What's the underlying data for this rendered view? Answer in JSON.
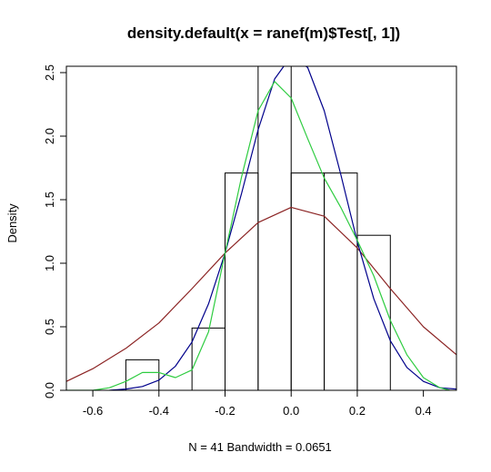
{
  "chart_data": {
    "type": "line",
    "title": "density.default(x = ranef(m)$Test[, 1])",
    "xlabel": "N = 41   Bandwidth = 0.0651",
    "ylabel": "Density",
    "xlim": [
      -0.68,
      0.5
    ],
    "ylim": [
      0,
      2.55
    ],
    "x_ticks": [
      -0.6,
      -0.4,
      -0.2,
      0.0,
      0.2,
      0.4
    ],
    "x_tick_labels": [
      "-0.6",
      "-0.4",
      "-0.2",
      "0.0",
      "0.2",
      "0.4"
    ],
    "y_ticks": [
      0,
      0.5,
      1.0,
      1.5,
      2.0,
      2.5
    ],
    "y_tick_labels": [
      "0.0",
      "0.5",
      "1.0",
      "1.5",
      "2.0",
      "2.5"
    ],
    "grid": false,
    "histogram": {
      "bins": [
        {
          "x0": -0.5,
          "x1": -0.4,
          "density": 0.24
        },
        {
          "x0": -0.4,
          "x1": -0.3,
          "density": 0.0
        },
        {
          "x0": -0.3,
          "x1": -0.2,
          "density": 0.49
        },
        {
          "x0": -0.2,
          "x1": -0.1,
          "density": 1.71
        },
        {
          "x0": -0.1,
          "x1": 0.0,
          "density": 2.55
        },
        {
          "x0": 0.0,
          "x1": 0.1,
          "density": 1.71
        },
        {
          "x0": 0.1,
          "x1": 0.2,
          "density": 1.71
        },
        {
          "x0": 0.2,
          "x1": 0.3,
          "density": 1.22
        }
      ],
      "color": "#000000"
    },
    "series": [
      {
        "color": "#8B2323",
        "x": [
          -0.68,
          -0.6,
          -0.5,
          -0.4,
          -0.3,
          -0.2,
          -0.1,
          0.0,
          0.1,
          0.2,
          0.3,
          0.4,
          0.5
        ],
        "y": [
          0.07,
          0.17,
          0.33,
          0.53,
          0.8,
          1.08,
          1.32,
          1.44,
          1.37,
          1.12,
          0.8,
          0.5,
          0.28
        ]
      },
      {
        "color": "#00008B",
        "x": [
          -0.55,
          -0.5,
          -0.45,
          -0.4,
          -0.35,
          -0.3,
          -0.25,
          -0.2,
          -0.15,
          -0.1,
          -0.05,
          0.0,
          0.05,
          0.1,
          0.15,
          0.2,
          0.25,
          0.3,
          0.35,
          0.4,
          0.45,
          0.5
        ],
        "y": [
          0.0,
          0.01,
          0.03,
          0.08,
          0.19,
          0.38,
          0.68,
          1.08,
          1.55,
          2.05,
          2.45,
          2.63,
          2.54,
          2.2,
          1.7,
          1.17,
          0.72,
          0.39,
          0.18,
          0.07,
          0.02,
          0.01
        ]
      },
      {
        "color": "#2ECC40",
        "x": [
          -0.68,
          -0.6,
          -0.55,
          -0.5,
          -0.45,
          -0.4,
          -0.35,
          -0.3,
          -0.25,
          -0.2,
          -0.15,
          -0.1,
          -0.05,
          0.0,
          0.05,
          0.1,
          0.15,
          0.2,
          0.25,
          0.3,
          0.35,
          0.4,
          0.45,
          0.48
        ],
        "y": [
          0.0,
          0.0,
          0.02,
          0.07,
          0.14,
          0.14,
          0.1,
          0.16,
          0.46,
          1.08,
          1.68,
          2.2,
          2.43,
          2.3,
          1.98,
          1.67,
          1.44,
          1.18,
          0.9,
          0.55,
          0.28,
          0.1,
          0.02,
          0.0
        ]
      }
    ]
  }
}
